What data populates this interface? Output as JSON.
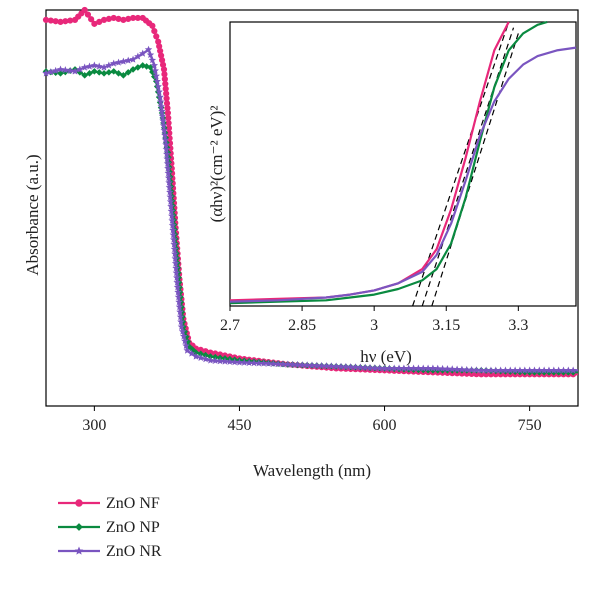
{
  "chart_data": [
    {
      "type": "line",
      "xlabel": "Wavelength (nm)",
      "ylabel": "Absorbance (a.u.)",
      "xlim": [
        250,
        800
      ],
      "ylim": [
        0,
        1.0
      ],
      "x_ticks": [
        "300",
        "450",
        "600",
        "750"
      ],
      "x_tick_values": [
        300,
        450,
        600,
        750
      ],
      "y_ticks_shown": false,
      "legend_position": "bottom-left",
      "series": [
        {
          "name": "ZnO NF",
          "color": "#e8287a",
          "marker": "circle",
          "x": [
            250,
            265,
            280,
            290,
            300,
            310,
            320,
            330,
            340,
            350,
            360,
            366,
            372,
            376,
            380,
            384,
            388,
            392,
            398,
            405,
            420,
            450,
            500,
            550,
            600,
            650,
            700,
            750,
            800
          ],
          "y": [
            0.975,
            0.97,
            0.975,
            1.0,
            0.965,
            0.975,
            0.98,
            0.975,
            0.98,
            0.98,
            0.96,
            0.92,
            0.85,
            0.74,
            0.6,
            0.45,
            0.32,
            0.22,
            0.16,
            0.145,
            0.135,
            0.12,
            0.105,
            0.095,
            0.09,
            0.085,
            0.08,
            0.08,
            0.08
          ]
        },
        {
          "name": "ZnO NP",
          "color": "#0a8a40",
          "marker": "diamond",
          "x": [
            250,
            265,
            280,
            290,
            300,
            310,
            320,
            330,
            340,
            350,
            358,
            364,
            370,
            376,
            380,
            384,
            388,
            392,
            398,
            405,
            420,
            450,
            500,
            550,
            600,
            650,
            700,
            750,
            800
          ],
          "y": [
            0.845,
            0.84,
            0.85,
            0.835,
            0.845,
            0.84,
            0.845,
            0.835,
            0.85,
            0.86,
            0.855,
            0.82,
            0.74,
            0.64,
            0.53,
            0.41,
            0.3,
            0.2,
            0.15,
            0.135,
            0.125,
            0.115,
            0.105,
            0.1,
            0.095,
            0.09,
            0.09,
            0.085,
            0.085
          ]
        },
        {
          "name": "ZnO NR",
          "color": "#7a55c0",
          "marker": "star",
          "x": [
            250,
            265,
            280,
            290,
            300,
            310,
            320,
            330,
            340,
            350,
            356,
            362,
            368,
            374,
            378,
            382,
            386,
            390,
            396,
            405,
            420,
            450,
            500,
            550,
            600,
            650,
            700,
            750,
            800
          ],
          "y": [
            0.84,
            0.85,
            0.845,
            0.855,
            0.86,
            0.855,
            0.865,
            0.87,
            0.875,
            0.89,
            0.9,
            0.86,
            0.78,
            0.66,
            0.54,
            0.42,
            0.3,
            0.2,
            0.14,
            0.125,
            0.115,
            0.11,
            0.105,
            0.1,
            0.095,
            0.095,
            0.09,
            0.09,
            0.09
          ]
        }
      ]
    },
    {
      "type": "line",
      "xlabel": "hν (eV)",
      "ylabel": "(αhν)²(cm⁻² eV)²",
      "xlim": [
        2.7,
        3.42
      ],
      "ylim": [
        0,
        1.0
      ],
      "x_ticks": [
        "2.7",
        "2.85",
        "3",
        "3.15",
        "3.3"
      ],
      "x_tick_values": [
        2.7,
        2.85,
        3.0,
        3.15,
        3.3
      ],
      "y_ticks_shown": false,
      "series": [
        {
          "name": "ZnO NF",
          "color": "#e8287a",
          "x": [
            2.7,
            2.8,
            2.9,
            2.95,
            3.0,
            3.05,
            3.1,
            3.13,
            3.16,
            3.19,
            3.22,
            3.25,
            3.28
          ],
          "y": [
            0.02,
            0.025,
            0.03,
            0.04,
            0.055,
            0.08,
            0.13,
            0.2,
            0.34,
            0.52,
            0.72,
            0.9,
            1.0
          ]
        },
        {
          "name": "ZnO NP",
          "color": "#0a8a40",
          "x": [
            2.7,
            2.8,
            2.9,
            2.95,
            3.0,
            3.05,
            3.1,
            3.13,
            3.16,
            3.19,
            3.22,
            3.25,
            3.28,
            3.31,
            3.34,
            3.36
          ],
          "y": [
            0.01,
            0.015,
            0.02,
            0.03,
            0.04,
            0.06,
            0.09,
            0.13,
            0.22,
            0.38,
            0.58,
            0.77,
            0.9,
            0.96,
            0.99,
            1.0
          ]
        },
        {
          "name": "ZnO NR",
          "color": "#7a55c0",
          "x": [
            2.7,
            2.8,
            2.9,
            2.95,
            3.0,
            3.05,
            3.1,
            3.13,
            3.16,
            3.19,
            3.22,
            3.25,
            3.28,
            3.31,
            3.34,
            3.38,
            3.42
          ],
          "y": [
            0.015,
            0.02,
            0.03,
            0.04,
            0.055,
            0.08,
            0.12,
            0.18,
            0.29,
            0.44,
            0.6,
            0.72,
            0.8,
            0.85,
            0.88,
            0.9,
            0.91
          ]
        }
      ],
      "tangent_lines": [
        {
          "color": "#000000",
          "x": [
            3.08,
            3.28
          ],
          "y": [
            0.0,
            1.0
          ]
        },
        {
          "color": "#000000",
          "x": [
            3.1,
            3.29
          ],
          "y": [
            0.0,
            0.98
          ]
        },
        {
          "color": "#000000",
          "x": [
            3.12,
            3.3
          ],
          "y": [
            0.0,
            0.96
          ]
        }
      ]
    }
  ]
}
